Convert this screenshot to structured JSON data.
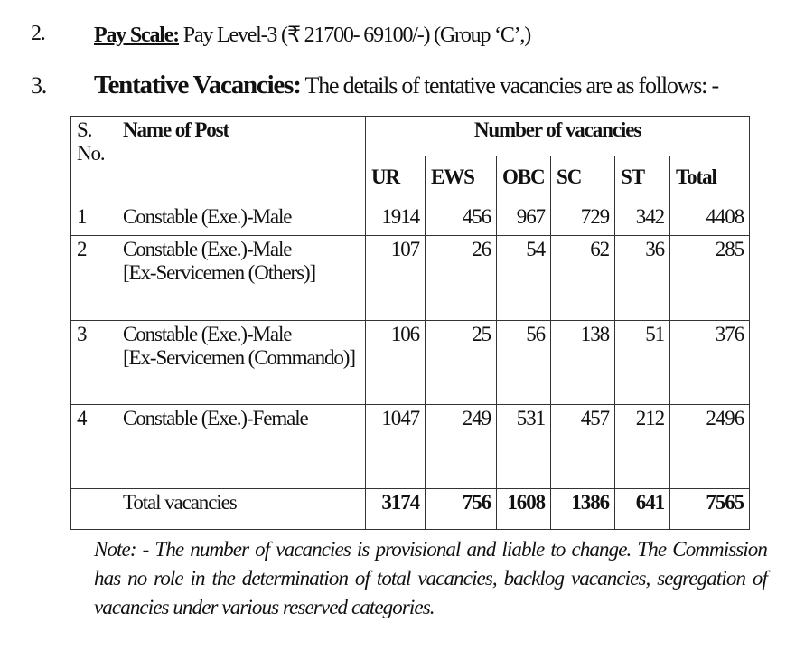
{
  "items": [
    {
      "number": "2.",
      "heading": "Pay Scale:",
      "text": "Pay Level-3 (₹ 21700- 69100/-) (Group ‘C’,)"
    },
    {
      "number": "3.",
      "heading": "Tentative Vacancies:",
      "text": "The details of tentative vacancies are as follows: -"
    }
  ],
  "table": {
    "headers": {
      "sno": "S. No.",
      "post": "Name of Post",
      "group": "Number of vacancies",
      "cols": [
        "UR",
        "EWS",
        "OBC",
        "SC",
        "ST",
        "Total"
      ]
    },
    "rows": [
      {
        "sno": "1",
        "post": [
          "Constable (Exe.)-Male"
        ],
        "values": [
          "1914",
          "456",
          "967",
          "729",
          "342",
          "4408"
        ]
      },
      {
        "sno": "2",
        "post": [
          "Constable (Exe.)-Male",
          "[Ex-Servicemen (Others)]"
        ],
        "values": [
          "107",
          "26",
          "54",
          "62",
          "36",
          "285"
        ]
      },
      {
        "sno": "3",
        "post": [
          "Constable (Exe.)-Male",
          "[Ex-Servicemen (Commando)]"
        ],
        "values": [
          "106",
          "25",
          "56",
          "138",
          "51",
          "376"
        ]
      },
      {
        "sno": "4",
        "post": [
          "Constable (Exe.)-Female"
        ],
        "values": [
          "1047",
          "249",
          "531",
          "457",
          "212",
          "2496"
        ]
      }
    ],
    "total": {
      "label": "Total vacancies",
      "values": [
        "3174",
        "756",
        "1608",
        "1386",
        "641",
        "7565"
      ]
    }
  },
  "note": "Note: - The number of vacancies is provisional and liable to change. The Commission has no role in the determination of total vacancies, backlog vacancies, segregation of vacancies under various reserved categories."
}
